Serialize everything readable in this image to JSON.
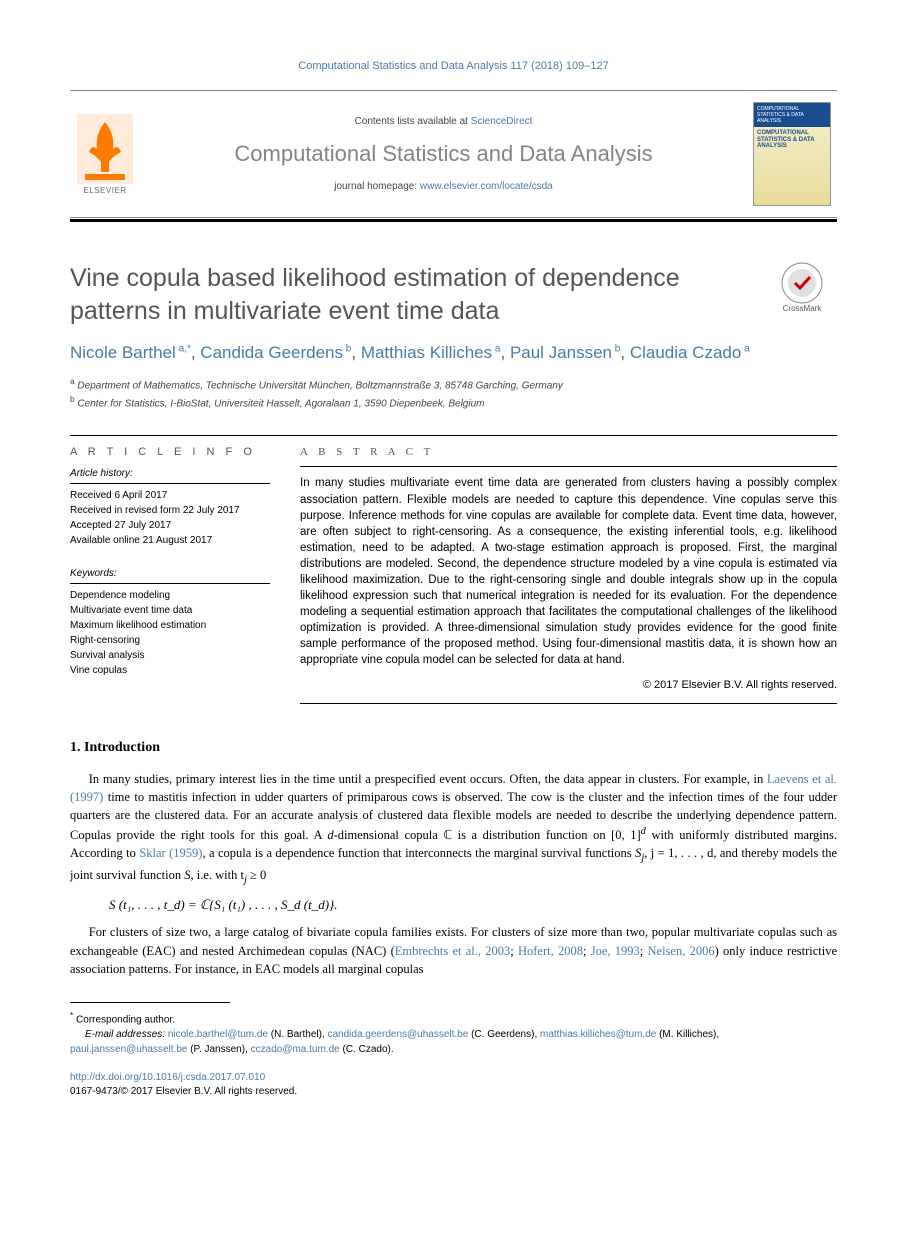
{
  "citation": "Computational Statistics and Data Analysis 117 (2018) 109–127",
  "header": {
    "contents_prefix": "Contents lists available at ",
    "contents_link": "ScienceDirect",
    "journal_name": "Computational Statistics and Data Analysis",
    "homepage_prefix": "journal homepage: ",
    "homepage_link": "www.elsevier.com/locate/csda",
    "publisher": "ELSEVIER",
    "cover_top": "COMPUTATIONAL STATISTICS & DATA ANALYSIS",
    "cover_title": "COMPUTATIONAL STATISTICS & DATA ANALYSIS"
  },
  "article": {
    "title": "Vine copula based likelihood estimation of dependence patterns in multivariate event time data",
    "crossmark_label": "CrossMark",
    "authors_html": "Nicole Barthel|a,*|, Candida Geerdens|b|, Matthias Killiches|a|, Paul Janssen|b|, Claudia Czado|a|",
    "authors": [
      {
        "name": "Nicole Barthel",
        "aff": "a,",
        "star": "*"
      },
      {
        "name": "Candida Geerdens",
        "aff": "b"
      },
      {
        "name": "Matthias Killiches",
        "aff": "a"
      },
      {
        "name": "Paul Janssen",
        "aff": "b"
      },
      {
        "name": "Claudia Czado",
        "aff": "a"
      }
    ],
    "affiliations": [
      {
        "sup": "a",
        "text": " Department of Mathematics, Technische Universität München, Boltzmannstraße 3, 85748 Garching, Germany"
      },
      {
        "sup": "b",
        "text": " Center for Statistics, I-BioStat, Universiteit Hasselt, Agoralaan 1, 3590 Diepenbeek, Belgium"
      }
    ]
  },
  "info": {
    "heading": "A R T I C L E   I N F O",
    "history_heading": "Article history:",
    "history": [
      "Received 6 April 2017",
      "Received in revised form 22 July 2017",
      "Accepted 27 July 2017",
      "Available online 21 August 2017"
    ],
    "keywords_heading": "Keywords:",
    "keywords": [
      "Dependence modeling",
      "Multivariate event time data",
      "Maximum likelihood estimation",
      "Right-censoring",
      "Survival analysis",
      "Vine copulas"
    ]
  },
  "abstract": {
    "heading": "A B S T R A C T",
    "text": "In many studies multivariate event time data are generated from clusters having a possibly complex association pattern. Flexible models are needed to capture this dependence. Vine copulas serve this purpose. Inference methods for vine copulas are available for complete data. Event time data, however, are often subject to right-censoring. As a consequence, the existing inferential tools, e.g. likelihood estimation, need to be adapted. A two-stage estimation approach is proposed. First, the marginal distributions are modeled. Second, the dependence structure modeled by a vine copula is estimated via likelihood maximization. Due to the right-censoring single and double integrals show up in the copula likelihood expression such that numerical integration is needed for its evaluation. For the dependence modeling a sequential estimation approach that facilitates the computational challenges of the likelihood optimization is provided. A three-dimensional simulation study provides evidence for the good finite sample performance of the proposed method. Using four-dimensional mastitis data, it is shown how an appropriate vine copula model can be selected for data at hand.",
    "copyright": "© 2017 Elsevier B.V. All rights reserved."
  },
  "section1": {
    "heading": "1.  Introduction",
    "para1_pre": "In many studies, primary interest lies in the time until a prespecified event occurs. Often, the data appear in clusters. For example, in  ",
    "para1_link1": "Laevens et al. (1997)",
    "para1_mid1": " time to mastitis infection in udder quarters of primiparous cows is observed. The cow is the cluster and the infection times of the four udder quarters are the clustered data. For an accurate analysis of clustered data flexible models are needed to describe the underlying dependence pattern. Copulas provide the right tools for this goal. A ",
    "para1_ital1": "d",
    "para1_mid2": "-dimensional copula ℂ is a distribution function on [0, 1]",
    "para1_sup1": "d",
    "para1_mid3": " with uniformly distributed margins. According to ",
    "para1_link2": "Sklar (1959)",
    "para1_mid4": ", a copula is a dependence function that interconnects the marginal survival functions ",
    "para1_ital2": "S",
    "para1_sub1": "j",
    "para1_mid5": ", j = 1, . . . , d, and thereby models the joint survival function ",
    "para1_ital3": "S",
    "para1_end": ", i.e. with t",
    "para1_sub2": "j",
    "para1_end2": " ≥ 0",
    "equation": "S (t₁, . . . , t_d) = ℂ{S₁ (t₁) , . . . , S_d (t_d)}.",
    "para2_pre": "For clusters of size two, a large catalog of bivariate copula families exists. For clusters of size more than two, popular multivariate copulas such as exchangeable (EAC) and nested Archimedean copulas (NAC)  (",
    "para2_link1": "Embrechts et al., 2003",
    "para2_sep1": "; ",
    "para2_link2": "Hofert, 2008",
    "para2_sep2": "; ",
    "para2_link3": "Joe, 1993",
    "para2_sep3": "; ",
    "para2_link4": "Nelsen, 2006",
    "para2_end": ") only induce restrictive association patterns. For instance, in EAC models all marginal copulas"
  },
  "footnotes": {
    "corr_label": "Corresponding author.",
    "email_label": "E-mail addresses:",
    "emails": [
      {
        "addr": "nicole.barthel@tum.de",
        "who": " (N. Barthel), "
      },
      {
        "addr": "candida.geerdens@uhasselt.be",
        "who": " (C. Geerdens), "
      },
      {
        "addr": "matthias.killiches@tum.de",
        "who": " (M. Killiches), "
      },
      {
        "addr": "paul.janssen@uhasselt.be",
        "who": " (P. Janssen), "
      },
      {
        "addr": "cczado@ma.tum.de",
        "who": " (C. Czado)."
      }
    ],
    "doi": "http://dx.doi.org/10.1016/j.csda.2017.07.010",
    "issn_line": "0167-9473/© 2017 Elsevier B.V. All rights reserved."
  },
  "colors": {
    "link": "#4a7ba6",
    "gray_text": "#555555",
    "heading_gray": "#848484"
  }
}
